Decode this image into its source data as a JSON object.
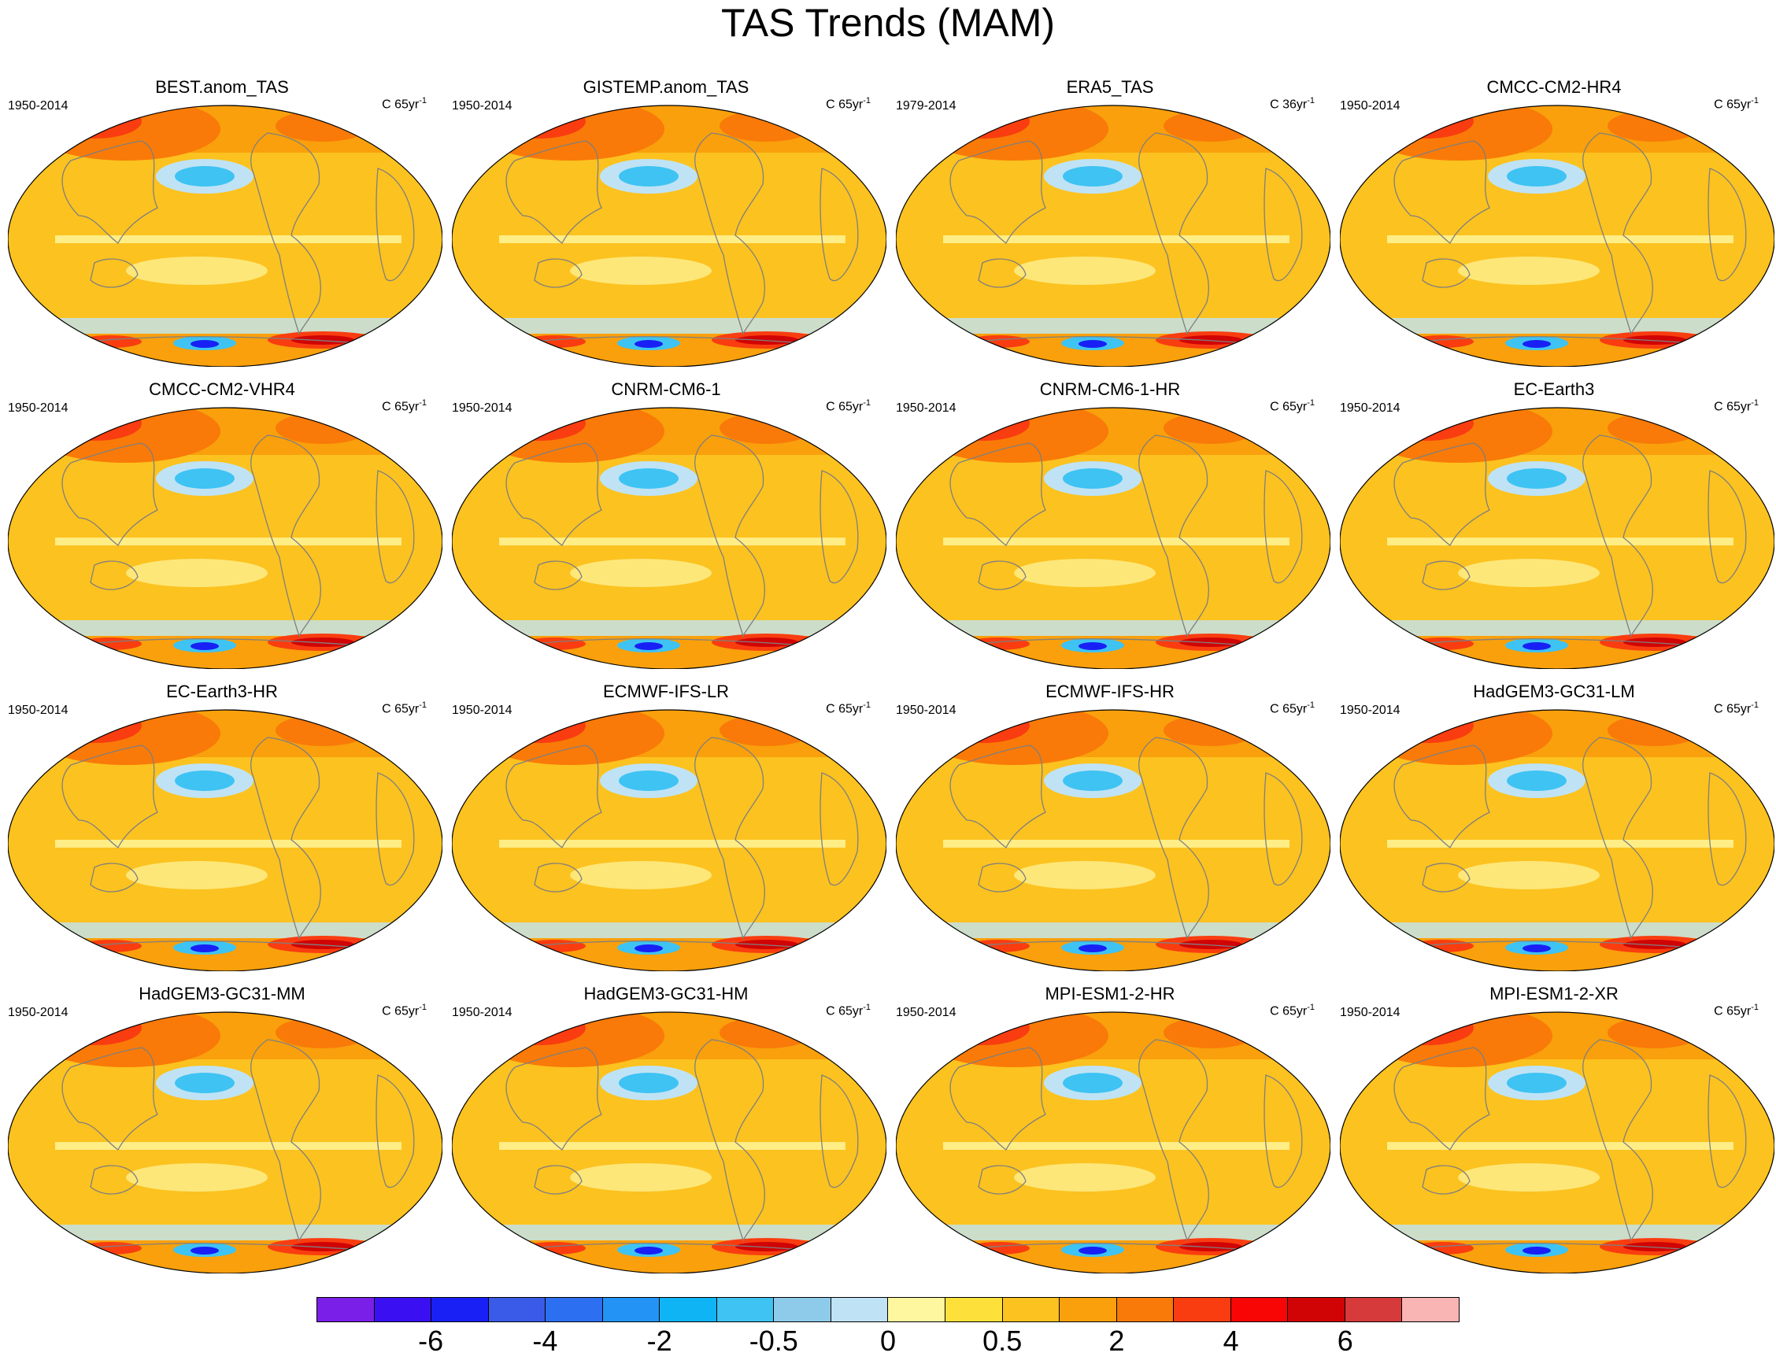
{
  "figure": {
    "title": "TAS Trends (MAM)"
  },
  "panels": [
    {
      "title": "BEST.anom_TAS",
      "period": "1950-2014",
      "units_prefix": "C 65yr",
      "units_exp": "-1"
    },
    {
      "title": "GISTEMP.anom_TAS",
      "period": "1950-2014",
      "units_prefix": "C 65yr",
      "units_exp": "-1"
    },
    {
      "title": "ERA5_TAS",
      "period": "1979-2014",
      "units_prefix": "C 36yr",
      "units_exp": "-1"
    },
    {
      "title": "CMCC-CM2-HR4",
      "period": "1950-2014",
      "units_prefix": "C 65yr",
      "units_exp": "-1"
    },
    {
      "title": "CMCC-CM2-VHR4",
      "period": "1950-2014",
      "units_prefix": "C 65yr",
      "units_exp": "-1"
    },
    {
      "title": "CNRM-CM6-1",
      "period": "1950-2014",
      "units_prefix": "C 65yr",
      "units_exp": "-1"
    },
    {
      "title": "CNRM-CM6-1-HR",
      "period": "1950-2014",
      "units_prefix": "C 65yr",
      "units_exp": "-1"
    },
    {
      "title": "EC-Earth3",
      "period": "1950-2014",
      "units_prefix": "C 65yr",
      "units_exp": "-1"
    },
    {
      "title": "EC-Earth3-HR",
      "period": "1950-2014",
      "units_prefix": "C 65yr",
      "units_exp": "-1"
    },
    {
      "title": "ECMWF-IFS-LR",
      "period": "1950-2014",
      "units_prefix": "C 65yr",
      "units_exp": "-1"
    },
    {
      "title": "ECMWF-IFS-HR",
      "period": "1950-2014",
      "units_prefix": "C 65yr",
      "units_exp": "-1"
    },
    {
      "title": "HadGEM3-GC31-LM",
      "period": "1950-2014",
      "units_prefix": "C 65yr",
      "units_exp": "-1"
    },
    {
      "title": "HadGEM3-GC31-MM",
      "period": "1950-2014",
      "units_prefix": "C 65yr",
      "units_exp": "-1"
    },
    {
      "title": "HadGEM3-GC31-HM",
      "period": "1950-2014",
      "units_prefix": "C 65yr",
      "units_exp": "-1"
    },
    {
      "title": "MPI-ESM1-2-HR",
      "period": "1950-2014",
      "units_prefix": "C 65yr",
      "units_exp": "-1"
    },
    {
      "title": "MPI-ESM1-2-XR",
      "period": "1950-2014",
      "units_prefix": "C 65yr",
      "units_exp": "-1"
    }
  ],
  "colorbar": {
    "colors": [
      "#7a1fe8",
      "#3a10f2",
      "#1820f5",
      "#3a5ae8",
      "#2c6ff0",
      "#2394f5",
      "#0fb4f5",
      "#3ec3f3",
      "#8ecbea",
      "#bfe3f5",
      "#fff7a0",
      "#fde13a",
      "#fcc21f",
      "#f9a00c",
      "#f97a08",
      "#f93d10",
      "#f80606",
      "#d00404",
      "#d63a3a",
      "#f9b4b4"
    ],
    "tick_labels": [
      "-6",
      "-4",
      "-2",
      "-0.5",
      "0",
      "0.5",
      "2",
      "4",
      "6"
    ]
  },
  "map_colors": {
    "ocean_base": "#fcc21f",
    "warm": "#f9a00c",
    "warmer": "#f97a08",
    "hot": "#f93d10",
    "hottest": "#d00404",
    "neutral": "#fff7a0",
    "cool": "#bfe3f5",
    "cooler": "#3ec3f3",
    "cold": "#1820f5",
    "coast": "#7f7f7f"
  }
}
